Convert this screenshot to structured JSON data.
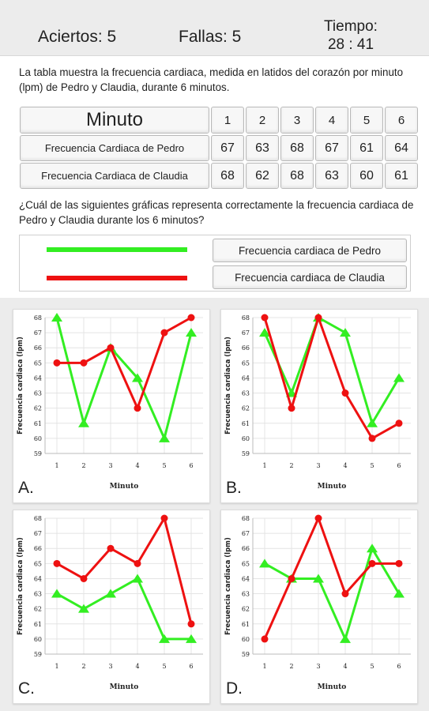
{
  "header": {
    "aciertos": "Aciertos: 5",
    "fallas": "Fallas: 5",
    "tiempo_label": "Tiempo:",
    "tiempo_value": "28 : 41"
  },
  "intro_text": "La tabla muestra la frecuencia cardiaca, medida en latidos del corazón por minuto (lpm) de Pedro y Claudia, durante 6 minutos.",
  "table": {
    "header_label": "Minuto",
    "minutes": [
      "1",
      "2",
      "3",
      "4",
      "5",
      "6"
    ],
    "rows": [
      {
        "label": "Frecuencia Cardiaca de Pedro",
        "values": [
          "67",
          "63",
          "68",
          "67",
          "61",
          "64"
        ]
      },
      {
        "label": "Frecuencia Cardiaca de Claudia",
        "values": [
          "68",
          "62",
          "68",
          "63",
          "60",
          "61"
        ]
      }
    ]
  },
  "question_text": "¿Cuál de las siguientes gráficas representa correctamente la frecuencia cardiaca de Pedro y Claudia durante los 6 minutos?",
  "legend": {
    "pedro_label": "Frecuencia cardiaca de Pedro",
    "claudia_label": "Frecuencia cardiaca de Claudia",
    "pedro_color": "#33ee22",
    "claudia_color": "#ee1111"
  },
  "chart_data": [
    {
      "type": "line",
      "option": "A.",
      "ylabel": "Frecuencia cardiaca (lpm)",
      "xlabel": "Minuto",
      "x": [
        1,
        2,
        3,
        4,
        5,
        6
      ],
      "ylim": [
        59,
        68
      ],
      "grid": true,
      "series": [
        {
          "color": "#33ee22",
          "marker": "triangle",
          "values": [
            68,
            61,
            66,
            64,
            60,
            67
          ]
        },
        {
          "color": "#ee1111",
          "marker": "circle",
          "values": [
            65,
            65,
            66,
            62,
            67,
            68
          ]
        }
      ]
    },
    {
      "type": "line",
      "option": "B.",
      "ylabel": "Frecuencia cardiaca (lpm)",
      "xlabel": "Minuto",
      "x": [
        1,
        2,
        3,
        4,
        5,
        6
      ],
      "ylim": [
        59,
        68
      ],
      "grid": true,
      "series": [
        {
          "color": "#33ee22",
          "marker": "triangle",
          "values": [
            67,
            63,
            68,
            67,
            61,
            64
          ]
        },
        {
          "color": "#ee1111",
          "marker": "circle",
          "values": [
            68,
            62,
            68,
            63,
            60,
            61
          ]
        }
      ]
    },
    {
      "type": "line",
      "option": "C.",
      "ylabel": "Frecuencia cardiaca (lpm)",
      "xlabel": "Minuto",
      "x": [
        1,
        2,
        3,
        4,
        5,
        6
      ],
      "ylim": [
        59,
        68
      ],
      "grid": true,
      "series": [
        {
          "color": "#33ee22",
          "marker": "triangle",
          "values": [
            63,
            62,
            63,
            64,
            60,
            60
          ]
        },
        {
          "color": "#ee1111",
          "marker": "circle",
          "values": [
            65,
            64,
            66,
            65,
            68,
            61
          ]
        }
      ]
    },
    {
      "type": "line",
      "option": "D.",
      "ylabel": "Frecuencia cardiaca (lpm)",
      "xlabel": "Minuto",
      "x": [
        1,
        2,
        3,
        4,
        5,
        6
      ],
      "ylim": [
        59,
        68
      ],
      "grid": true,
      "series": [
        {
          "color": "#33ee22",
          "marker": "triangle",
          "values": [
            65,
            64,
            64,
            60,
            66,
            63
          ]
        },
        {
          "color": "#ee1111",
          "marker": "circle",
          "values": [
            60,
            64,
            68,
            63,
            65,
            65
          ]
        }
      ]
    }
  ]
}
